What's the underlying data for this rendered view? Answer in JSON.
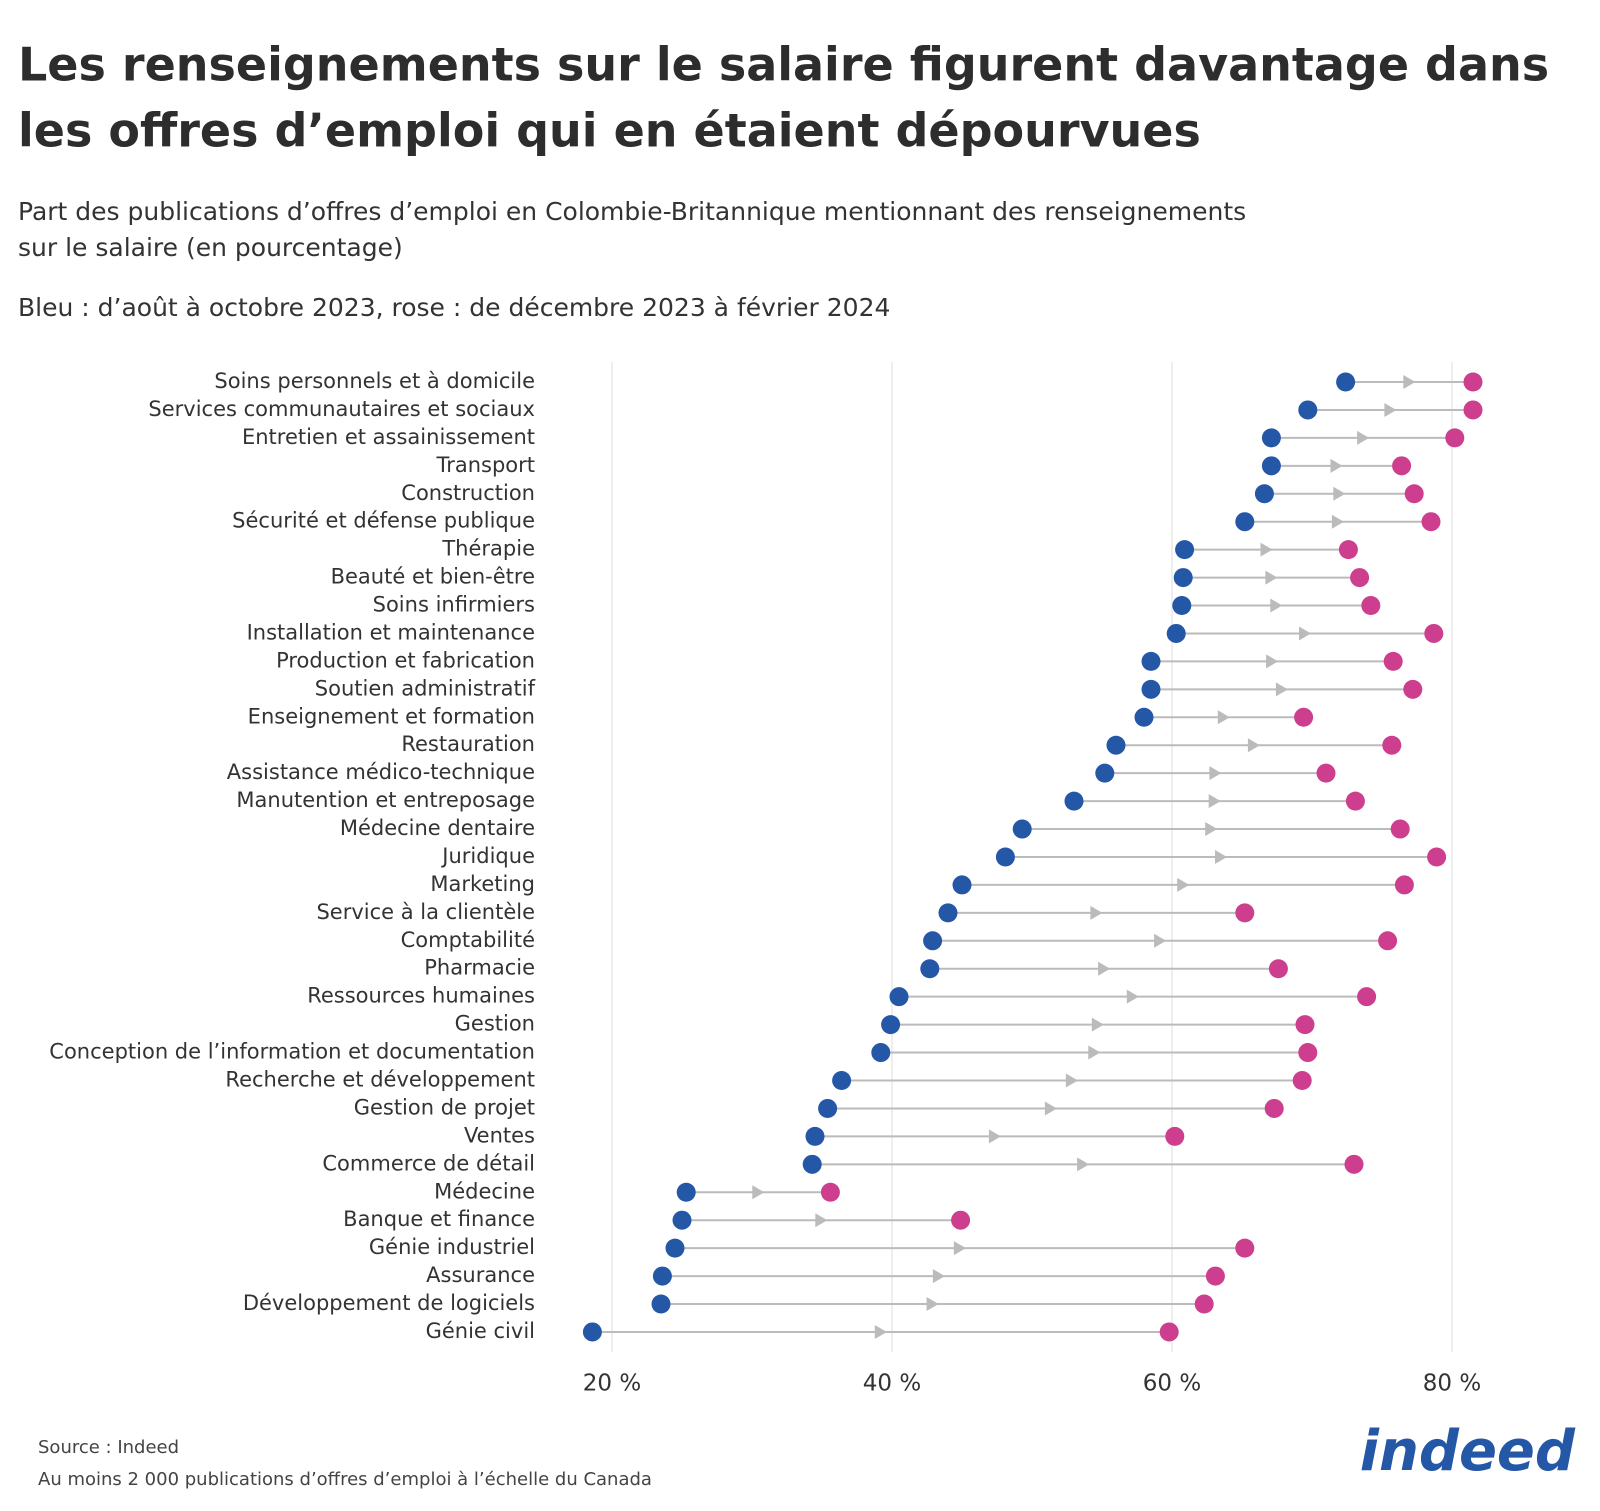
{
  "chart_data": {
    "type": "dumbbell",
    "title_lines": [
      "Les renseignements sur le salaire figurent davantage dans",
      "les offres d’emploi qui en étaient dépourvues"
    ],
    "subtitle_lines": [
      "Part des publications d’offres d’emploi en Colombie-Britannique mentionnant des renseignements",
      "sur le salaire (en pourcentage)"
    ],
    "note": "Bleu : d’août à octobre 2023, rose : de décembre 2023 à février 2024",
    "categories": [
      "Soins personnels et à domicile",
      "Services communautaires et sociaux",
      "Entretien et assainissement",
      "Transport",
      "Construction",
      "Sécurité et défense publique",
      "Thérapie",
      "Beauté et bien-être",
      "Soins infirmiers",
      "Installation et maintenance",
      "Production et fabrication",
      "Soutien administratif",
      "Enseignement et formation",
      "Restauration",
      "Assistance médico-technique",
      "Manutention et entreposage",
      "Médecine dentaire",
      "Juridique",
      "Marketing",
      "Service à la clientèle",
      "Comptabilité",
      "Pharmacie",
      "Ressources humaines",
      "Gestion",
      "Conception de l’information et documentation",
      "Recherche et développement",
      "Gestion de projet",
      "Ventes",
      "Commerce de détail",
      "Médecine",
      "Banque et finance",
      "Génie industriel",
      "Assurance",
      "Développement de logiciels",
      "Génie civil"
    ],
    "series": [
      {
        "color": "#2557a7",
        "values": [
          72.4,
          69.7,
          67.1,
          67.1,
          66.6,
          65.2,
          60.9,
          60.8,
          60.7,
          60.3,
          58.5,
          58.5,
          58.0,
          56.0,
          55.2,
          53.0,
          49.3,
          48.1,
          45.0,
          44.0,
          42.9,
          42.7,
          40.5,
          39.9,
          39.2,
          36.4,
          35.4,
          34.5,
          34.3,
          25.3,
          25.0,
          24.5,
          23.6,
          23.5,
          18.6
        ]
      },
      {
        "color": "#cd3f8e",
        "values": [
          81.5,
          81.5,
          80.2,
          76.4,
          77.3,
          78.5,
          72.6,
          73.4,
          74.2,
          78.7,
          75.8,
          77.2,
          69.4,
          75.7,
          71.0,
          73.1,
          76.3,
          78.9,
          76.6,
          65.2,
          75.4,
          67.6,
          73.9,
          69.5,
          69.7,
          69.3,
          67.3,
          60.2,
          73.0,
          35.6,
          44.9,
          65.2,
          63.1,
          62.3,
          59.8
        ]
      }
    ],
    "arrow_color": "#bbbbbb",
    "xlim": [
      17,
      83
    ],
    "xticks": [
      {
        "value": 20,
        "label": "20 %"
      },
      {
        "value": 40,
        "label": "40 %"
      },
      {
        "value": 60,
        "label": "60 %"
      },
      {
        "value": 80,
        "label": "80 %"
      }
    ],
    "grid": true,
    "source": "Source : Indeed",
    "footnote": "Au moins 2 000 publications d’offres d’emploi à l’échelle du Canada",
    "logo": "indeed"
  }
}
